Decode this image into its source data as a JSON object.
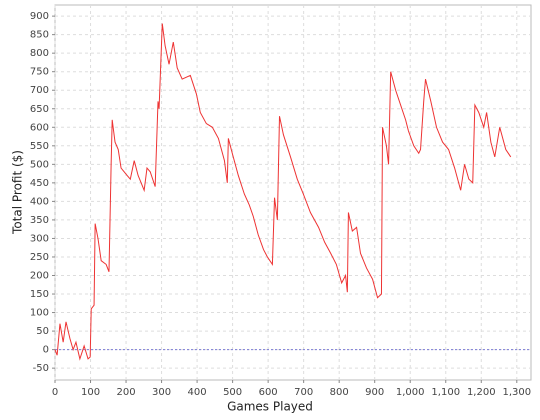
{
  "chart_data": {
    "type": "line",
    "x_label": "Games Played",
    "y_label": "Total Profit ($)",
    "xlim": [
      0,
      1340
    ],
    "ylim": [
      -82,
      930
    ],
    "xticks": [
      0,
      100,
      200,
      300,
      400,
      500,
      600,
      700,
      800,
      900,
      {
        "value": 1000,
        "label": "1,000"
      },
      {
        "value": 1100,
        "label": "1,100"
      },
      {
        "value": 1200,
        "label": "1,200"
      },
      {
        "value": 1300,
        "label": "1,300"
      }
    ],
    "yticks": [
      -50,
      0,
      50,
      100,
      150,
      200,
      250,
      300,
      350,
      400,
      450,
      500,
      550,
      600,
      650,
      700,
      750,
      800,
      850,
      900
    ],
    "grid": true,
    "marker_line": {
      "value": 0,
      "color": "#7b7bd6"
    },
    "series": [
      {
        "color": "#ee3333",
        "x": [
          0,
          6,
          14,
          23,
          31,
          42,
          51,
          59,
          70,
          82,
          93,
          99,
          102,
          110,
          113,
          121,
          130,
          144,
          152,
          158,
          161,
          169,
          178,
          186,
          203,
          212,
          223,
          234,
          251,
          259,
          268,
          282,
          290,
          293,
          302,
          310,
          321,
          333,
          344,
          358,
          381,
          398,
          409,
          426,
          443,
          460,
          477,
          485,
          488,
          499,
          516,
          533,
          547,
          558,
          572,
          587,
          598,
          612,
          618,
          626,
          632,
          643,
          663,
          682,
          699,
          719,
          742,
          759,
          776,
          792,
          807,
          818,
          823,
          826,
          837,
          849,
          860,
          877,
          894,
          908,
          919,
          922,
          933,
          939,
          945,
          959,
          973,
          987,
          995,
          1010,
          1024,
          1029,
          1038,
          1043,
          1058,
          1074,
          1091,
          1108,
          1125,
          1142,
          1153,
          1165,
          1176,
          1182,
          1193,
          1207,
          1215,
          1227,
          1238,
          1252,
          1269,
          1283
        ],
        "values": [
          0,
          -15,
          70,
          20,
          75,
          30,
          0,
          20,
          -25,
          10,
          -25,
          -20,
          110,
          120,
          340,
          300,
          240,
          230,
          210,
          500,
          620,
          560,
          540,
          490,
          470,
          460,
          510,
          470,
          430,
          490,
          480,
          440,
          670,
          650,
          880,
          820,
          770,
          830,
          760,
          730,
          740,
          690,
          640,
          610,
          600,
          570,
          510,
          450,
          570,
          530,
          470,
          420,
          390,
          360,
          310,
          270,
          250,
          230,
          410,
          350,
          630,
          580,
          520,
          460,
          420,
          370,
          330,
          290,
          260,
          230,
          180,
          200,
          155,
          370,
          320,
          330,
          260,
          220,
          190,
          140,
          150,
          600,
          550,
          500,
          750,
          700,
          660,
          620,
          590,
          550,
          530,
          540,
          670,
          730,
          670,
          600,
          560,
          540,
          490,
          430,
          500,
          460,
          450,
          660,
          640,
          600,
          640,
          560,
          520,
          600,
          540,
          520
        ]
      }
    ]
  }
}
